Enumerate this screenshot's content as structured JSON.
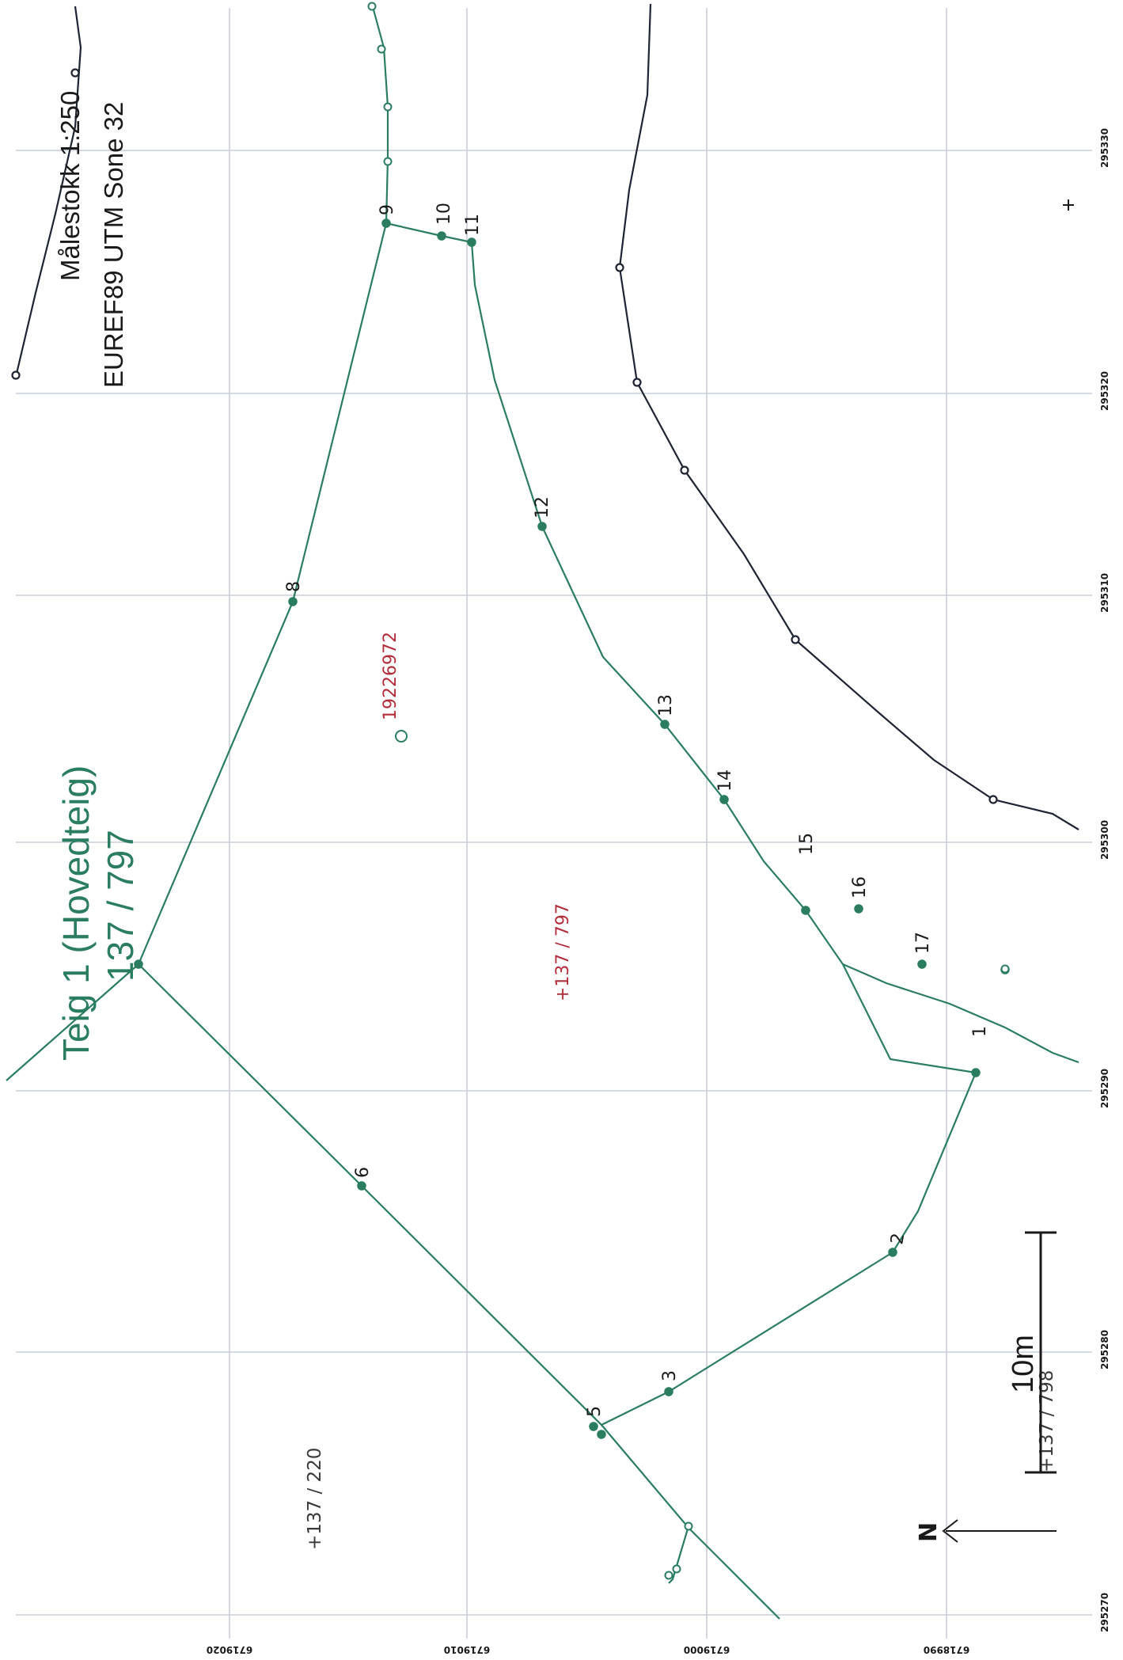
{
  "colors": {
    "parcel_line": "#2a7d5f",
    "road_line": "#1f2433",
    "parcel_id_text": "#b22d3a",
    "grid": "#c9cdd8"
  },
  "title": {
    "line1": "Teig 1 (Hovedteig)",
    "line2": "137 / 797"
  },
  "map_info": {
    "scale": "Målestokk 1:250",
    "projection": "EUREF89 UTM Sone 32"
  },
  "grid": {
    "eastings": [
      "295270",
      "295280",
      "295290",
      "295300",
      "295310",
      "295320",
      "295330"
    ],
    "northings": [
      "6718990",
      "6719000",
      "6719010",
      "6719020"
    ]
  },
  "point_numbers": [
    "1",
    "2",
    "3",
    "5",
    "6",
    "8",
    "9",
    "10",
    "11",
    "12",
    "13",
    "14",
    "15",
    "16",
    "17"
  ],
  "labels": {
    "parcel_main": "+137 / 797",
    "building_id": "19226972",
    "neighbour_parcel_1": "+137 / 220",
    "neighbour_parcel_2": "+137 / 798"
  },
  "scale_bar": {
    "label": "10m"
  },
  "north_arrow": {
    "label": "N"
  },
  "icons": [
    "north-arrow-icon",
    "building-marker-icon",
    "parcel-center-cross-icon"
  ]
}
